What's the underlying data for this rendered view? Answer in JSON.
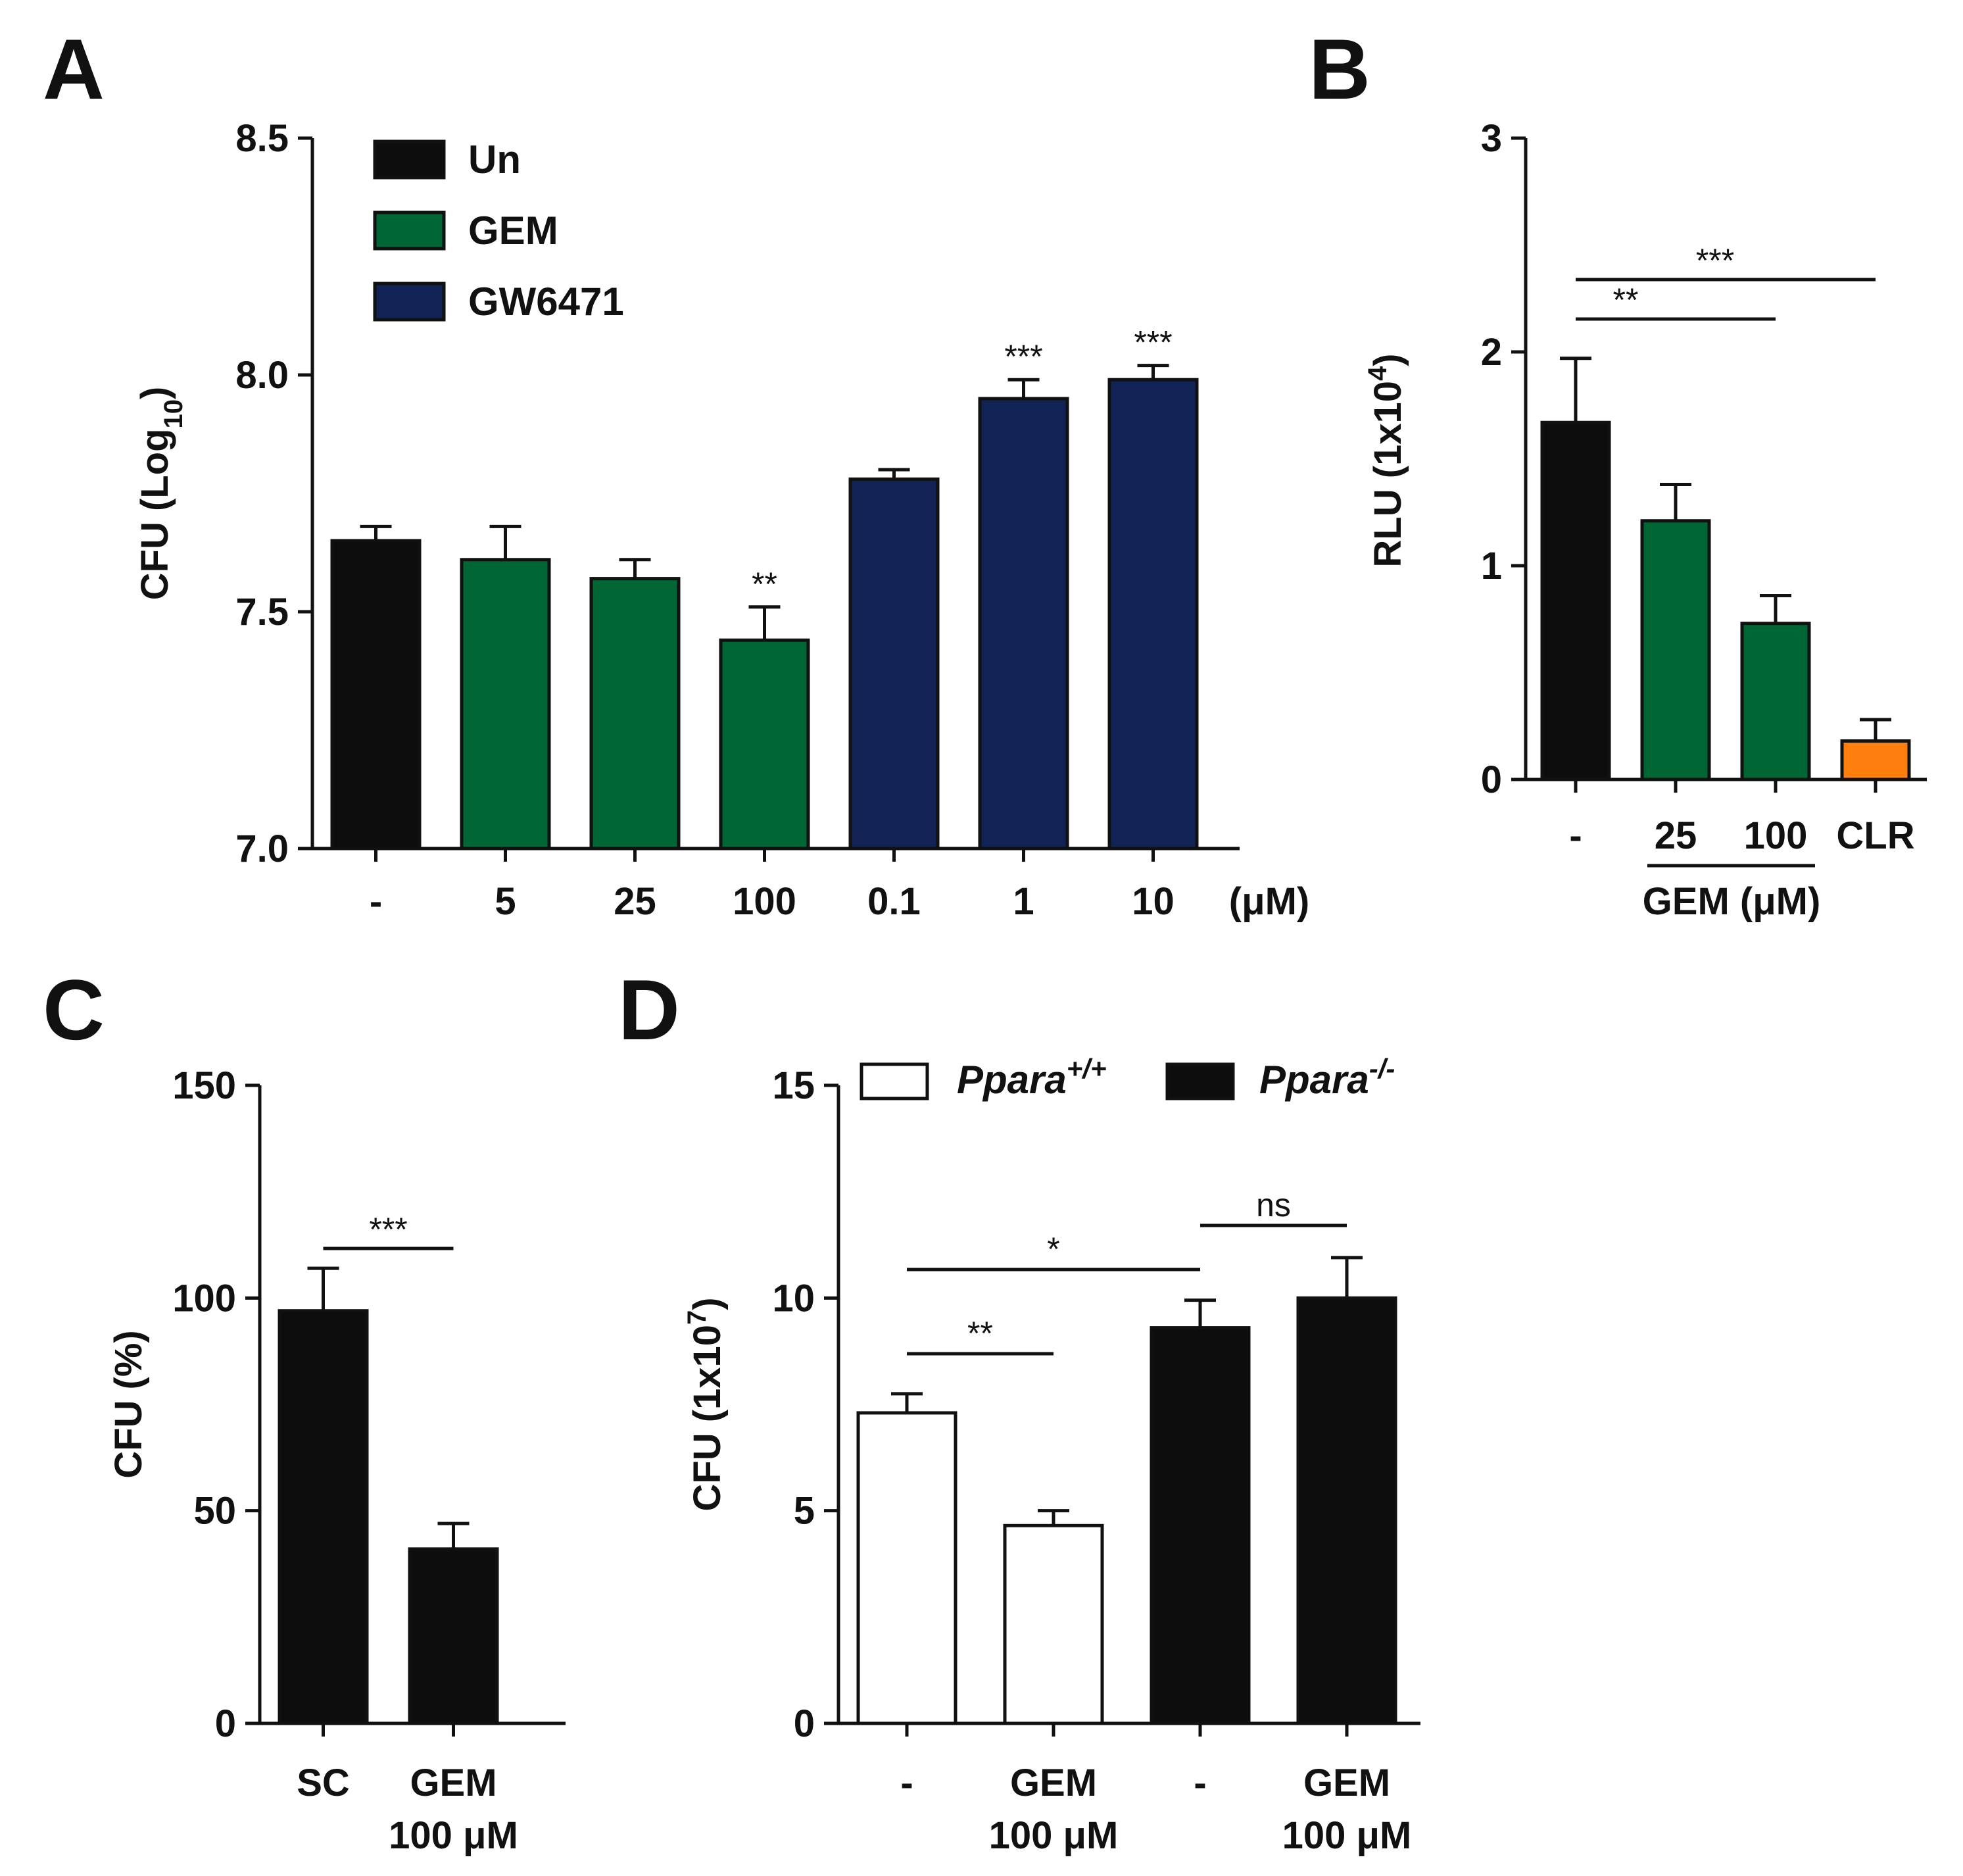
{
  "panels": {
    "A": "A",
    "B": "B",
    "C": "C",
    "D": "D"
  },
  "colors": {
    "black": "#0d0d0d",
    "green": "#006633",
    "navy": "#112255",
    "orange": "#ff7f0e",
    "white": "#ffffff"
  },
  "chart_data": [
    {
      "id": "A",
      "type": "bar",
      "ylabel": "CFU (Log",
      "ylabel_sub": "10",
      "ylabel_end": ")",
      "ylim": [
        7.0,
        8.5
      ],
      "yticks": [
        "7.0",
        "7.5",
        "8.0",
        "8.5"
      ],
      "categories": [
        "-",
        "5",
        "25",
        "100",
        "0.1",
        "1",
        "10"
      ],
      "unit_label": "(μM)",
      "values": [
        7.65,
        7.61,
        7.57,
        7.44,
        7.78,
        7.95,
        7.99
      ],
      "errors": [
        0.03,
        0.07,
        0.04,
        0.07,
        0.02,
        0.04,
        0.03
      ],
      "groups": [
        "black",
        "green",
        "green",
        "green",
        "navy",
        "navy",
        "navy"
      ],
      "significance": [
        "",
        "",
        "",
        "**",
        "",
        "***",
        "***"
      ],
      "legend": [
        {
          "label": "Un",
          "color": "black"
        },
        {
          "label": "GEM",
          "color": "green"
        },
        {
          "label": "GW6471",
          "color": "navy"
        }
      ]
    },
    {
      "id": "B",
      "type": "bar",
      "ylabel": "RLU (1x10",
      "ylabel_sup": "4",
      "ylabel_end": ")",
      "ylim": [
        0,
        3
      ],
      "yticks": [
        "0",
        "1",
        "2",
        "3"
      ],
      "categories": [
        "-",
        "25",
        "100",
        "CLR"
      ],
      "group_label": "GEM (μM)",
      "values": [
        1.67,
        1.21,
        0.73,
        0.18
      ],
      "errors": [
        0.3,
        0.17,
        0.13,
        0.1
      ],
      "groups": [
        "black",
        "green",
        "green",
        "orange"
      ],
      "comparisons": [
        {
          "from": 0,
          "to": 2,
          "label": "**"
        },
        {
          "from": 0,
          "to": 3,
          "label": "***"
        }
      ]
    },
    {
      "id": "C",
      "type": "bar",
      "ylabel": "CFU (%)",
      "ylim": [
        0,
        150
      ],
      "yticks": [
        "0",
        "50",
        "100",
        "150"
      ],
      "categories": [
        "SC",
        "GEM"
      ],
      "category_sub": [
        "",
        "100 μM"
      ],
      "values": [
        97,
        41
      ],
      "errors": [
        10,
        6
      ],
      "groups": [
        "black",
        "black"
      ],
      "comparisons": [
        {
          "from": 0,
          "to": 1,
          "label": "***"
        }
      ]
    },
    {
      "id": "D",
      "type": "bar",
      "ylabel": "CFU (1x10",
      "ylabel_sup": "7",
      "ylabel_end": ")",
      "ylim": [
        0,
        15
      ],
      "yticks": [
        "0",
        "5",
        "10",
        "15"
      ],
      "categories": [
        "-",
        "GEM",
        "-",
        "GEM"
      ],
      "category_sub": [
        "",
        "100 μM",
        "",
        "100 μM"
      ],
      "values": [
        7.3,
        4.65,
        9.3,
        10.0
      ],
      "errors": [
        0.45,
        0.35,
        0.65,
        0.95
      ],
      "groups": [
        "white",
        "white",
        "black",
        "black"
      ],
      "legend": [
        {
          "label": "Ppara",
          "sup": "+/+",
          "color": "white"
        },
        {
          "label": "Ppara",
          "sup": "-/-",
          "color": "black"
        }
      ],
      "comparisons": [
        {
          "from": 0,
          "to": 1,
          "label": "**"
        },
        {
          "from": 0,
          "to": 2,
          "label": "*"
        },
        {
          "from": 2,
          "to": 3,
          "label": "ns"
        }
      ]
    }
  ]
}
